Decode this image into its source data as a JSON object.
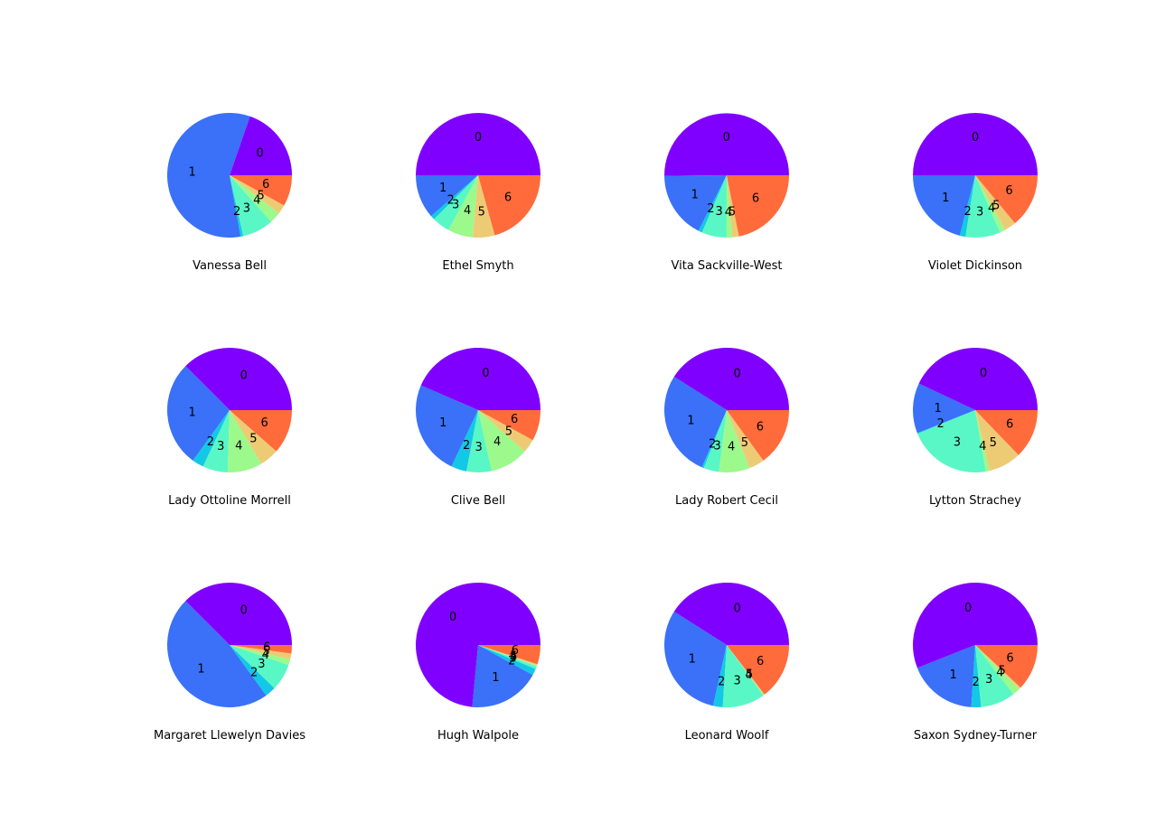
{
  "colors": [
    "#8000ff",
    "#3a71f8",
    "#12c8e6",
    "#58f7c5",
    "#9cf98c",
    "#edcb75",
    "#ff6b3b"
  ],
  "chart_data": [
    {
      "type": "pie",
      "title": "Vanessa Bell",
      "categories": [
        "0",
        "1",
        "2",
        "3",
        "4",
        "5",
        "6"
      ],
      "values": [
        20.0,
        59.0,
        0.7,
        8.2,
        3.0,
        2.4,
        8.2
      ]
    },
    {
      "type": "pie",
      "title": "Ethel Smyth",
      "categories": [
        "0",
        "1",
        "2",
        "3",
        "4",
        "5",
        "6"
      ],
      "values": [
        50.0,
        11.4,
        1.1,
        4.6,
        6.5,
        5.7,
        20.7
      ]
    },
    {
      "type": "pie",
      "title": "Vita Sackville-West",
      "categories": [
        "0",
        "1",
        "2",
        "3",
        "4",
        "5",
        "6"
      ],
      "values": [
        50.5,
        17.5,
        1.0,
        6.5,
        1.5,
        1.7,
        22.0
      ]
    },
    {
      "type": "pie",
      "title": "Violet Dickinson",
      "categories": [
        "0",
        "1",
        "2",
        "3",
        "4",
        "5",
        "6"
      ],
      "values": [
        50.0,
        21.0,
        1.5,
        9.0,
        1.5,
        3.0,
        14.0
      ]
    },
    {
      "type": "pie",
      "title": "Lady Ottoline Morrell",
      "categories": [
        "0",
        "1",
        "2",
        "3",
        "4",
        "5",
        "6"
      ],
      "values": [
        37.5,
        27.5,
        3.0,
        6.5,
        9.0,
        5.0,
        11.5
      ]
    },
    {
      "type": "pie",
      "title": "Clive Bell",
      "categories": [
        "0",
        "1",
        "2",
        "3",
        "4",
        "5",
        "6"
      ],
      "values": [
        43.5,
        24.5,
        4.0,
        6.5,
        10.0,
        3.5,
        8.0
      ]
    },
    {
      "type": "pie",
      "title": "Lady Robert Cecil",
      "categories": [
        "0",
        "1",
        "2",
        "3",
        "4",
        "5",
        "6"
      ],
      "values": [
        41.0,
        27.5,
        0.5,
        4.0,
        8.0,
        4.0,
        15.0
      ]
    },
    {
      "type": "pie",
      "title": "Lytton Strachey",
      "categories": [
        "0",
        "1",
        "2",
        "3",
        "4",
        "5",
        "6"
      ],
      "values": [
        43.0,
        13.0,
        0.2,
        21.5,
        1.0,
        8.5,
        12.8
      ]
    },
    {
      "type": "pie",
      "title": "Margaret Llewelyn Davies",
      "categories": [
        "0",
        "1",
        "2",
        "3",
        "4",
        "5",
        "6"
      ],
      "values": [
        37.5,
        47.5,
        2.8,
        7.0,
        1.5,
        1.5,
        2.2
      ]
    },
    {
      "type": "pie",
      "title": "Hugh Walpole",
      "categories": [
        "0",
        "1",
        "2",
        "3",
        "4",
        "5",
        "6"
      ],
      "values": [
        73.5,
        18.5,
        1.7,
        0.7,
        0.3,
        0.3,
        5.0
      ]
    },
    {
      "type": "pie",
      "title": "Leonard Woolf",
      "categories": [
        "0",
        "1",
        "2",
        "3",
        "4",
        "5",
        "6"
      ],
      "values": [
        41.0,
        30.5,
        2.5,
        11.0,
        0.2,
        0.2,
        14.6
      ]
    },
    {
      "type": "pie",
      "title": "Saxon Sydney-Turner",
      "categories": [
        "0",
        "1",
        "2",
        "3",
        "4",
        "5",
        "6"
      ],
      "values": [
        56.0,
        18.0,
        2.5,
        9.0,
        2.0,
        0.5,
        12.0
      ]
    }
  ]
}
